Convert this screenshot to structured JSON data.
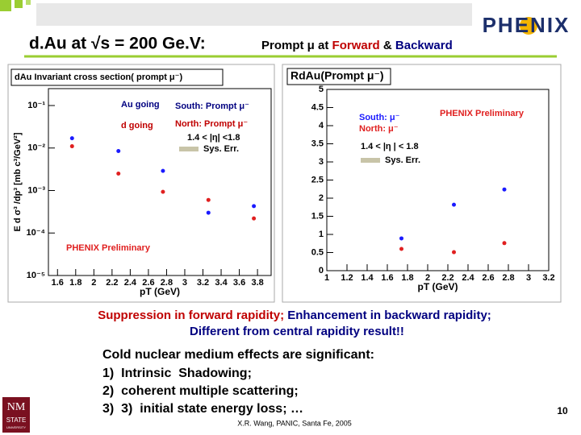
{
  "slide": {
    "title": "d.Au at √s = 200 Ge.V:",
    "subtitle_parts": [
      "Prompt μ at ",
      "Forward",
      " & ",
      "Backward"
    ],
    "logo": "PHENIX",
    "summary": [
      "Suppression in forward rapidity;",
      " Enhancement in backward rapidity;",
      "Different from central rapidity result!!"
    ],
    "points": [
      "Cold nuclear medium effects are significant:",
      "1)  Intrinsic  Shadowing;",
      "2)  coherent multiple scattering;",
      "3)  3)  initial state energy loss; …"
    ],
    "footer": "X.R. Wang, PANIC, Santa Fe, 2005",
    "page": "10",
    "university": [
      "NM",
      "STATE",
      "UNIVERSITY"
    ]
  },
  "chart_data": [
    {
      "type": "scatter",
      "title": "dAu Invariant cross section( prompt μ⁻)",
      "x_label": "pT (GeV)",
      "y_label": "E d σ³ /dp³ [mb c³/GeV²]",
      "ylog": true,
      "xlim": [
        1.5,
        3.95
      ],
      "xticks": [
        1.6,
        1.8,
        2,
        2.2,
        2.4,
        2.6,
        2.8,
        3,
        3.2,
        3.4,
        3.6,
        3.8
      ],
      "ylim": [
        1e-05,
        0.25
      ],
      "yticks": [
        {
          "value": 0.1,
          "label": "10⁻¹"
        },
        {
          "value": 0.01,
          "label": "10⁻²"
        },
        {
          "value": 0.001,
          "label": "10⁻³"
        },
        {
          "value": 0.0001,
          "label": "10⁻⁴"
        },
        {
          "value": 1e-05,
          "label": "10⁻⁵"
        }
      ],
      "x": [
        1.76,
        2.27,
        2.76,
        3.26,
        3.76
      ],
      "series": [
        {
          "name": "South: Prompt μ⁻",
          "color": "#1a1aff",
          "values": [
            0.017,
            0.0085,
            0.0029,
            0.0003,
            0.00043
          ]
        },
        {
          "name": "North: Prompt μ⁻",
          "color": "#e02020",
          "values": [
            0.011,
            0.0025,
            0.00093,
            0.0006,
            0.00022
          ]
        }
      ],
      "annotations": [
        "Au going",
        "d going",
        "1.4 < |η| <1.8",
        "Sys. Err.",
        "PHENIX Preliminary"
      ]
    },
    {
      "type": "scatter",
      "title": "RdAu(Prompt μ⁻)",
      "x_label": "pT (GeV)",
      "xlim": [
        1,
        3.2
      ],
      "xticks": [
        1,
        1.2,
        1.4,
        1.6,
        1.8,
        2,
        2.2,
        2.4,
        2.6,
        2.8,
        3,
        3.2
      ],
      "ylim": [
        0,
        5
      ],
      "yticks": [
        0,
        0.5,
        1,
        1.5,
        2,
        2.5,
        3,
        3.5,
        4,
        4.5,
        5
      ],
      "x": [
        1.74,
        2.26,
        2.76
      ],
      "series": [
        {
          "name": "South: μ⁻",
          "color": "#1a1aff",
          "values": [
            0.89,
            1.82,
            2.24
          ]
        },
        {
          "name": "North: μ⁻",
          "color": "#e02020",
          "values": [
            0.6,
            0.51,
            0.76
          ]
        }
      ],
      "annotations": [
        "PHENIX Preliminary",
        "1.4 < |η | < 1.8",
        "Sys. Err."
      ]
    }
  ]
}
